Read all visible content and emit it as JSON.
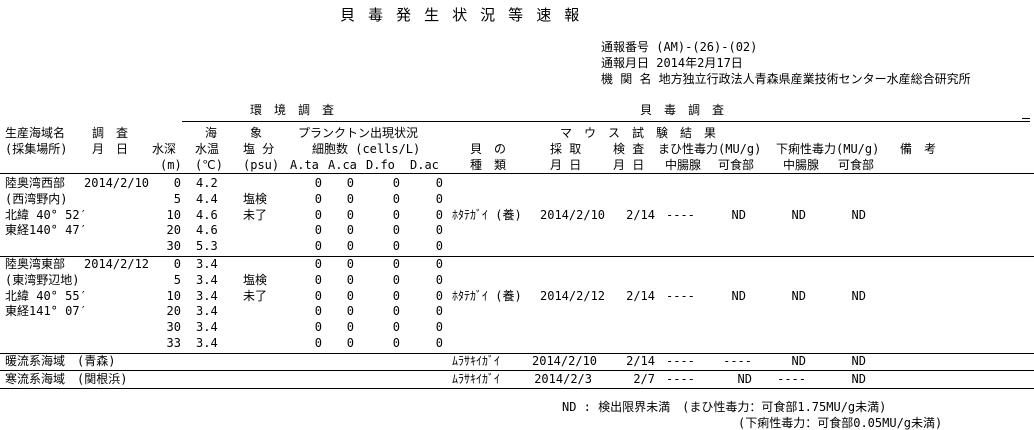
{
  "title": "貝 毒 発 生 状 況 等 速 報",
  "info": {
    "number": "通報番号 (AM)-(26)-(02)",
    "date": "通報月日 2014年2月17日",
    "agency": "機 関 名 地方独立行政法人青森県産業技術センター水産総合研究所"
  },
  "header": {
    "env_survey": "環　境　調　査",
    "toxin_survey": "貝　毒　調　査",
    "area_name": "生産海域名",
    "area_place": "(採集場所)",
    "survey": "調　査",
    "survey_md": "月　日",
    "depth": "水深",
    "depth_unit": "(m)",
    "sea": "海",
    "temp": "水温",
    "temp_unit": "(℃)",
    "phenom": "象",
    "salinity": "塩 分",
    "salinity_unit": "(psu)",
    "plankton": "プランクトン出現状況",
    "cells": "細胞数 (cells/L)",
    "species_cols": [
      "A.ta",
      "A.ca",
      "D.fo",
      "D.ac"
    ],
    "mouse": "マ　ウ　ス　試　験　結　果",
    "shell1": "貝　の",
    "shell2": "種　類",
    "collect1": "採 取",
    "collect2": "月 日",
    "inspect1": "検 査",
    "inspect2": "月 日",
    "psp": "まひ性毒力(MU/g)",
    "dsp": "下痢性毒力(MU/g)",
    "gland1": "中腸腺",
    "edible1": "可食部",
    "gland2": "中腸腺",
    "edible2": "可食部",
    "remarks": "備　考"
  },
  "groups": [
    {
      "label_lines": [
        "陸奥湾西部",
        "(西湾野内)",
        "北緯 40° 52′",
        "東経140° 47′"
      ],
      "date": "2014/2/10",
      "salinity_note": [
        "塩検",
        "未了"
      ],
      "rows": [
        {
          "depth": "0",
          "temp": "4.2",
          "cells": [
            "0",
            "0",
            "0",
            "0"
          ]
        },
        {
          "depth": "5",
          "temp": "4.4",
          "cells": [
            "0",
            "0",
            "0",
            "0"
          ]
        },
        {
          "depth": "10",
          "temp": "4.6",
          "cells": [
            "0",
            "0",
            "0",
            "0"
          ]
        },
        {
          "depth": "20",
          "temp": "4.6",
          "cells": [
            "0",
            "0",
            "0",
            "0"
          ]
        },
        {
          "depth": "30",
          "temp": "5.3",
          "cells": [
            "0",
            "0",
            "0",
            "0"
          ]
        }
      ],
      "shell": "ﾎﾀﾃｶﾞｲ (養)",
      "collect": "2014/2/10",
      "inspect": "2/14",
      "psp_gland": "----",
      "psp_edible": "ND",
      "dsp_gland": "ND",
      "dsp_edible": "ND"
    },
    {
      "label_lines": [
        "陸奥湾東部",
        "(東湾野辺地)",
        "北緯 40° 55′",
        "東経141° 07′"
      ],
      "date": "2014/2/12",
      "salinity_note": [
        "塩検",
        "未了"
      ],
      "rows": [
        {
          "depth": "0",
          "temp": "3.4",
          "cells": [
            "0",
            "0",
            "0",
            "0"
          ]
        },
        {
          "depth": "5",
          "temp": "3.4",
          "cells": [
            "0",
            "0",
            "0",
            "0"
          ]
        },
        {
          "depth": "10",
          "temp": "3.4",
          "cells": [
            "0",
            "0",
            "0",
            "0"
          ]
        },
        {
          "depth": "20",
          "temp": "3.4",
          "cells": [
            "0",
            "0",
            "0",
            "0"
          ]
        },
        {
          "depth": "30",
          "temp": "3.4",
          "cells": [
            "0",
            "0",
            "0",
            "0"
          ]
        },
        {
          "depth": "33",
          "temp": "3.4",
          "cells": [
            "0",
            "0",
            "0",
            "0"
          ]
        }
      ],
      "shell": "ﾎﾀﾃｶﾞｲ (養)",
      "collect": "2014/2/12",
      "inspect": "2/14",
      "psp_gland": "----",
      "psp_edible": "ND",
      "dsp_gland": "ND",
      "dsp_edible": "ND"
    }
  ],
  "extra_rows": [
    {
      "label": "暖流系海域　(青森)",
      "shell": "ﾑﾗｻｷｲｶﾞｲ",
      "collect": "2014/2/10",
      "inspect": "2/14",
      "psp_gland": "----",
      "psp_edible": "----",
      "dsp_gland": "ND",
      "dsp_edible": "ND"
    },
    {
      "label": "寒流系海域　(関根浜)",
      "shell": "ﾑﾗｻｷｲｶﾞｲ",
      "collect": "2014/2/3",
      "inspect": "2/7",
      "psp_gland": "----",
      "psp_edible": "ND",
      "dsp_gland": "----",
      "dsp_edible": "ND"
    }
  ],
  "footer": {
    "line1": "ND : 検出限界未満　(まひ性毒力：可食部1.75MU/g未満)",
    "line2": "(下痢性毒力：可食部0.05MU/g未満)"
  }
}
